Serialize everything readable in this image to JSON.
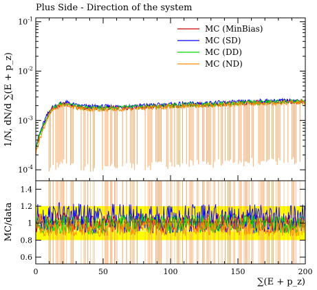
{
  "chart_data": [
    {
      "type": "line",
      "panel": "main",
      "title": "Plus Side - Direction of the system",
      "ylabel": "1/N, dN/d ∑(E + p_z)",
      "xlabel": "",
      "xlim": [
        0,
        200
      ],
      "ylim": [
        6e-05,
        0.12
      ],
      "yscale": "log",
      "y_ticks": [
        0.0001,
        0.001,
        0.01,
        0.1
      ],
      "y_tick_labels": [
        "10^-4",
        "10^-3",
        "10^-2",
        "10^-1"
      ],
      "legend_position": "top-right",
      "series": [
        {
          "name": "MC (MinBias)",
          "color": "#cc0000",
          "x": [
            0,
            2,
            4,
            6,
            8,
            10,
            12,
            15,
            18,
            22,
            26,
            30,
            40,
            60,
            80,
            100,
            120,
            140,
            160,
            180,
            200
          ],
          "y": [
            0.00025,
            0.0004,
            0.0006,
            0.0008,
            0.0011,
            0.0014,
            0.0017,
            0.0019,
            0.0021,
            0.0022,
            0.0021,
            0.0019,
            0.0018,
            0.0018,
            0.0019,
            0.002,
            0.0021,
            0.0022,
            0.0023,
            0.0024,
            0.0024
          ]
        },
        {
          "name": "MC (SD)",
          "color": "#0000ff",
          "x": [
            0,
            2,
            4,
            6,
            8,
            10,
            12,
            15,
            18,
            22,
            26,
            30,
            40,
            60,
            80,
            100,
            120,
            140,
            160,
            180,
            200
          ],
          "y": [
            0.0003,
            0.00045,
            0.00065,
            0.0009,
            0.0012,
            0.0015,
            0.0018,
            0.002,
            0.0022,
            0.0023,
            0.0022,
            0.002,
            0.0019,
            0.0019,
            0.002,
            0.0021,
            0.0022,
            0.0023,
            0.0024,
            0.0025,
            0.0025
          ]
        },
        {
          "name": "MC (DD)",
          "color": "#00dd00",
          "x": [
            0,
            2,
            4,
            6,
            8,
            10,
            12,
            15,
            18,
            22,
            26,
            30,
            40,
            60,
            80,
            100,
            120,
            140,
            160,
            180,
            200
          ],
          "y": [
            0.00028,
            0.00042,
            0.00062,
            0.00085,
            0.0011,
            0.0014,
            0.0017,
            0.0019,
            0.0021,
            0.0022,
            0.0021,
            0.0019,
            0.0018,
            0.0018,
            0.0019,
            0.002,
            0.0021,
            0.0022,
            0.0023,
            0.0024,
            0.0024
          ]
        },
        {
          "name": "MC (ND)",
          "color": "#ff8800",
          "x": [
            0,
            2,
            4,
            6,
            8,
            10,
            12,
            15,
            18,
            22,
            26,
            30,
            40,
            60,
            80,
            100,
            120,
            140,
            160,
            180,
            200
          ],
          "y": [
            0.0002,
            0.00035,
            0.0005,
            0.0007,
            0.001,
            0.0013,
            0.0016,
            0.0018,
            0.002,
            0.0021,
            0.002,
            0.0018,
            0.0017,
            0.0017,
            0.0018,
            0.0019,
            0.002,
            0.0021,
            0.0022,
            0.0023,
            0.0023
          ]
        }
      ]
    },
    {
      "type": "line",
      "panel": "ratio",
      "ylabel": "MC/data",
      "xlabel": "∑(E + p_z)",
      "xlim": [
        0,
        200
      ],
      "ylim": [
        0.52,
        1.5
      ],
      "x_ticks": [
        0,
        50,
        100,
        150,
        200
      ],
      "y_ticks": [
        0.6,
        0.8,
        1,
        1.2,
        1.4
      ],
      "band": {
        "inner": [
          0.9,
          1.1
        ],
        "outer": [
          0.8,
          1.2
        ]
      },
      "series": [
        {
          "name": "MC (MinBias)",
          "color": "#cc0000",
          "x": [
            0,
            20,
            40,
            60,
            80,
            100,
            120,
            140,
            160,
            180,
            200
          ],
          "y": [
            1.0,
            1.02,
            0.98,
            1.0,
            1.01,
            0.99,
            1.0,
            1.0,
            1.01,
            0.99,
            1.0
          ]
        },
        {
          "name": "MC (SD)",
          "color": "#0000ff",
          "x": [
            0,
            20,
            40,
            60,
            80,
            100,
            120,
            140,
            160,
            180,
            200
          ],
          "y": [
            1.05,
            1.08,
            1.04,
            1.06,
            1.05,
            1.04,
            1.05,
            1.06,
            1.05,
            1.04,
            1.05
          ]
        },
        {
          "name": "MC (DD)",
          "color": "#00dd00",
          "x": [
            0,
            20,
            40,
            60,
            80,
            100,
            120,
            140,
            160,
            180,
            200
          ],
          "y": [
            0.98,
            0.99,
            0.97,
            0.99,
            1.0,
            0.98,
            0.99,
            1.0,
            0.99,
            0.98,
            0.99
          ]
        },
        {
          "name": "MC (ND)",
          "color": "#ff8800",
          "x": [
            0,
            20,
            40,
            60,
            80,
            100,
            120,
            140,
            160,
            180,
            200
          ],
          "y": [
            0.95,
            0.96,
            0.94,
            0.97,
            0.96,
            0.95,
            0.96,
            0.97,
            0.96,
            0.95,
            0.96
          ]
        }
      ]
    }
  ]
}
